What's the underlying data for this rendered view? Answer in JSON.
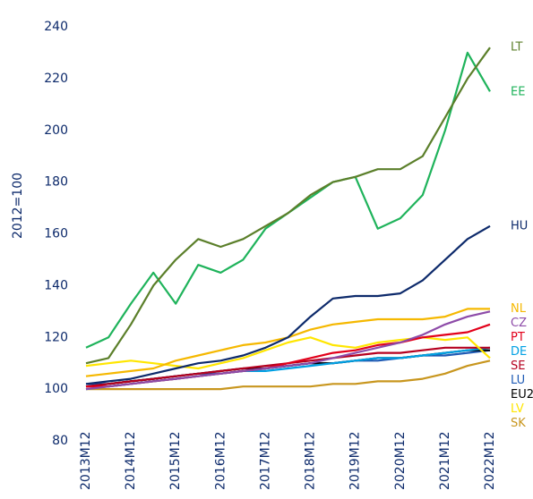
{
  "chart_data": {
    "type": "line",
    "y_label": "2012=100",
    "categories": [
      "2013M12",
      null,
      "2014M12",
      null,
      "2015M12",
      null,
      "2016M12",
      null,
      "2017M12",
      null,
      "2018M12",
      null,
      "2019M12",
      null,
      "2020M12",
      null,
      "2021M12",
      null,
      "2022M12"
    ],
    "ylim": [
      80,
      240
    ],
    "yticks": [
      80,
      100,
      120,
      140,
      160,
      180,
      200,
      220,
      240
    ],
    "grid": false,
    "series": [
      {
        "name": "LT",
        "color": "#5b7f2a",
        "values": [
          110,
          112,
          125,
          140,
          150,
          158,
          155,
          158,
          163,
          168,
          175,
          180,
          182,
          185,
          185,
          190,
          205,
          220,
          232
        ]
      },
      {
        "name": "EE",
        "color": "#1fb35b",
        "values": [
          116,
          120,
          133,
          145,
          133,
          148,
          145,
          150,
          162,
          168,
          174,
          180,
          182,
          162,
          166,
          175,
          200,
          230,
          215
        ]
      },
      {
        "name": "HU",
        "color": "#0d2a6b",
        "values": [
          102,
          103,
          104,
          106,
          108,
          110,
          111,
          113,
          116,
          120,
          128,
          135,
          136,
          136,
          137,
          142,
          150,
          158,
          163
        ]
      },
      {
        "name": "NL",
        "color": "#f5b800",
        "values": [
          105,
          106,
          107,
          108,
          111,
          113,
          115,
          117,
          118,
          120,
          123,
          125,
          126,
          127,
          127,
          127,
          128,
          131,
          131
        ]
      },
      {
        "name": "CZ",
        "color": "#8d4ba8",
        "values": [
          100,
          101,
          102,
          103,
          104,
          105,
          106,
          107,
          108,
          109,
          110,
          112,
          114,
          116,
          118,
          121,
          125,
          128,
          130
        ]
      },
      {
        "name": "PT",
        "color": "#e2001a",
        "values": [
          101,
          101,
          102,
          103,
          104,
          105,
          106,
          107,
          108,
          110,
          112,
          114,
          115,
          117,
          118,
          120,
          121,
          122,
          125
        ]
      },
      {
        "name": "LV",
        "color": "#ffe600",
        "values": [
          109,
          110,
          111,
          110,
          109,
          108,
          110,
          112,
          115,
          118,
          120,
          117,
          116,
          118,
          119,
          120,
          119,
          120,
          112
        ]
      },
      {
        "name": "SE",
        "color": "#b5001f",
        "values": [
          101,
          102,
          103,
          104,
          105,
          106,
          107,
          108,
          109,
          110,
          111,
          112,
          113,
          114,
          114,
          115,
          116,
          116,
          116
        ]
      },
      {
        "name": "DE",
        "color": "#00a0e3",
        "values": [
          100,
          101,
          102,
          103,
          104,
          105,
          106,
          107,
          107,
          108,
          109,
          110,
          111,
          112,
          112,
          113,
          114,
          115,
          116
        ]
      },
      {
        "name": "EU27",
        "color": "#000000",
        "values": [
          101,
          102,
          103,
          104,
          105,
          106,
          107,
          108,
          108,
          109,
          110,
          110,
          111,
          112,
          112,
          113,
          114,
          115,
          115
        ]
      },
      {
        "name": "LU",
        "color": "#1f5bb5",
        "values": [
          102,
          102,
          103,
          104,
          105,
          106,
          106,
          107,
          108,
          109,
          110,
          110,
          111,
          111,
          112,
          113,
          113,
          114,
          115
        ]
      },
      {
        "name": "SK",
        "color": "#c8961e",
        "values": [
          100,
          100,
          100,
          100,
          100,
          100,
          100,
          101,
          101,
          101,
          101,
          102,
          102,
          103,
          103,
          104,
          106,
          109,
          111
        ]
      }
    ]
  }
}
